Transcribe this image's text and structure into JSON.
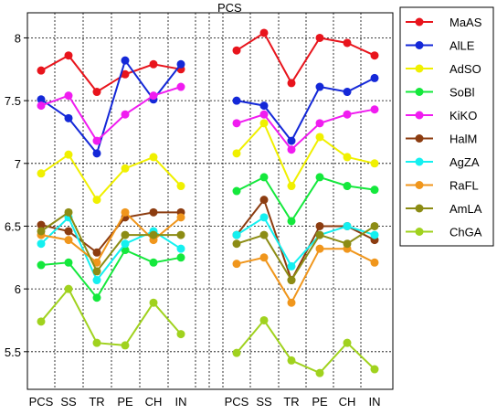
{
  "chart_data": {
    "type": "line",
    "title": "PCS",
    "categories": [
      "PCS",
      "SS",
      "TR",
      "PE",
      "CH",
      "IN"
    ],
    "panels": 2,
    "ylim": [
      5.2,
      8.2
    ],
    "yticks": [
      5.5,
      6,
      6.5,
      7,
      7.5,
      8
    ],
    "ytick_labels": [
      "5.5",
      "6",
      "6.5",
      "7",
      "7.5",
      "8"
    ],
    "grid": true,
    "legend_position": "right",
    "series": [
      {
        "name": "MaAS",
        "color": "#e8141c",
        "left": [
          7.74,
          7.86,
          7.57,
          7.71,
          7.79,
          7.75
        ],
        "right": [
          7.9,
          8.04,
          7.64,
          8.0,
          7.96,
          7.86
        ]
      },
      {
        "name": "AlLE",
        "color": "#1428d8",
        "left": [
          7.51,
          7.36,
          7.08,
          7.82,
          7.51,
          7.79
        ],
        "right": [
          7.5,
          7.46,
          7.18,
          7.61,
          7.57,
          7.68
        ]
      },
      {
        "name": "AdSO",
        "color": "#f0f000",
        "left": [
          6.92,
          7.07,
          6.71,
          6.96,
          7.05,
          6.82
        ],
        "right": [
          7.08,
          7.32,
          6.82,
          7.21,
          7.05,
          7.0
        ]
      },
      {
        "name": "SoBl",
        "color": "#14e83c",
        "left": [
          6.19,
          6.21,
          5.93,
          6.31,
          6.21,
          6.25
        ],
        "right": [
          6.78,
          6.89,
          6.54,
          6.89,
          6.82,
          6.79
        ]
      },
      {
        "name": "KiKO",
        "color": "#f01cf0",
        "left": [
          7.46,
          7.54,
          7.18,
          7.39,
          7.54,
          7.61
        ],
        "right": [
          7.32,
          7.39,
          7.11,
          7.32,
          7.39,
          7.43
        ]
      },
      {
        "name": "HalM",
        "color": "#8c3c10",
        "left": [
          6.51,
          6.46,
          6.29,
          6.57,
          6.61,
          6.61
        ],
        "right": [
          6.43,
          6.71,
          6.07,
          6.5,
          6.5,
          6.39
        ]
      },
      {
        "name": "AgZA",
        "color": "#14f0f0",
        "left": [
          6.36,
          6.57,
          6.07,
          6.36,
          6.46,
          6.32
        ],
        "right": [
          6.43,
          6.57,
          6.18,
          6.43,
          6.5,
          6.43
        ]
      },
      {
        "name": "RaFL",
        "color": "#f0961c",
        "left": [
          6.43,
          6.39,
          6.21,
          6.61,
          6.39,
          6.57
        ],
        "right": [
          6.2,
          6.25,
          5.89,
          6.32,
          6.32,
          6.21
        ]
      },
      {
        "name": "AmLA",
        "color": "#8c8c14",
        "left": [
          6.46,
          6.61,
          6.14,
          6.43,
          6.43,
          6.43
        ],
        "right": [
          6.36,
          6.43,
          6.07,
          6.43,
          6.36,
          6.5
        ]
      },
      {
        "name": "ChGA",
        "color": "#a0d21e",
        "left": [
          5.74,
          6.0,
          5.57,
          5.55,
          5.89,
          5.64
        ],
        "right": [
          5.49,
          5.75,
          5.43,
          5.33,
          5.57,
          5.36
        ]
      }
    ]
  }
}
